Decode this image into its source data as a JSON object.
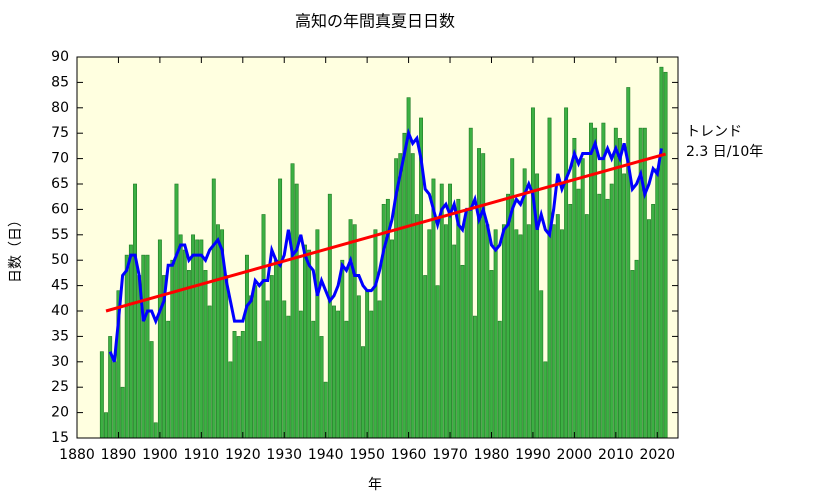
{
  "chart_data": {
    "type": "bar",
    "title": "高知の年間真夏日日数",
    "xlabel": "年",
    "ylabel": "日数（日）",
    "annotations": [
      "トレンド",
      "2.3 日/10年"
    ],
    "x": [
      1886,
      1887,
      1888,
      1889,
      1890,
      1891,
      1892,
      1893,
      1894,
      1895,
      1896,
      1897,
      1898,
      1899,
      1900,
      1901,
      1902,
      1903,
      1904,
      1905,
      1906,
      1907,
      1908,
      1909,
      1910,
      1911,
      1912,
      1913,
      1914,
      1915,
      1916,
      1917,
      1918,
      1919,
      1920,
      1921,
      1922,
      1923,
      1924,
      1925,
      1926,
      1927,
      1928,
      1929,
      1930,
      1931,
      1932,
      1933,
      1934,
      1935,
      1936,
      1937,
      1938,
      1939,
      1940,
      1941,
      1942,
      1943,
      1944,
      1945,
      1946,
      1947,
      1948,
      1949,
      1950,
      1951,
      1952,
      1953,
      1954,
      1955,
      1956,
      1957,
      1958,
      1959,
      1960,
      1961,
      1962,
      1963,
      1964,
      1965,
      1966,
      1967,
      1968,
      1969,
      1970,
      1971,
      1972,
      1973,
      1974,
      1975,
      1976,
      1977,
      1978,
      1979,
      1980,
      1981,
      1982,
      1983,
      1984,
      1985,
      1986,
      1987,
      1988,
      1989,
      1990,
      1991,
      1992,
      1993,
      1994,
      1995,
      1996,
      1997,
      1998,
      1999,
      2000,
      2001,
      2002,
      2003,
      2004,
      2005,
      2006,
      2007,
      2008,
      2009,
      2010,
      2011,
      2012,
      2013,
      2014,
      2015,
      2016,
      2017,
      2018,
      2019,
      2020,
      2021,
      2022
    ],
    "series": [
      {
        "color": "#3cb043",
        "values": [
          32,
          20,
          35,
          30,
          44,
          25,
          51,
          53,
          65,
          47,
          51,
          51,
          34,
          18,
          54,
          47,
          38,
          50,
          65,
          55,
          52,
          48,
          55,
          54,
          54,
          48,
          41,
          66,
          57,
          56,
          47,
          30,
          36,
          35,
          36,
          51,
          43,
          45,
          34,
          59,
          42,
          47,
          50,
          66,
          42,
          39,
          69,
          65,
          40,
          53,
          52,
          38,
          56,
          35,
          26,
          63,
          41,
          40,
          50,
          38,
          58,
          57,
          43,
          33,
          44,
          40,
          56,
          42,
          61,
          62,
          54,
          70,
          71,
          75,
          82,
          71,
          59,
          78,
          47,
          56,
          66,
          45,
          65,
          57,
          65,
          53,
          62,
          49,
          60,
          76,
          39,
          72,
          71,
          57,
          48,
          56,
          38,
          57,
          63,
          70,
          56,
          55,
          68,
          57,
          80,
          67,
          44,
          30,
          78,
          57,
          59,
          56,
          80,
          61,
          74,
          64,
          70,
          59,
          77,
          76,
          63,
          77,
          62,
          65,
          76,
          74,
          67,
          84,
          48,
          50,
          76,
          76,
          58,
          61,
          68,
          88,
          87
        ]
      },
      {
        "color": "#0000ff",
        "line": true,
        "values": [
          null,
          null,
          32,
          30,
          38,
          47,
          48,
          51,
          51,
          47,
          38,
          40,
          40,
          38,
          40,
          42,
          49,
          49,
          51,
          53,
          53,
          50,
          51,
          51,
          51,
          50,
          52,
          53,
          54,
          52,
          46,
          42,
          38,
          38,
          38,
          41,
          42,
          46,
          45,
          46,
          46,
          52,
          50,
          49,
          51,
          56,
          51,
          52,
          55,
          51,
          49,
          48,
          43,
          46,
          44,
          42,
          43,
          45,
          49,
          48,
          50,
          47,
          47,
          45,
          44,
          44,
          45,
          48,
          52,
          55,
          58,
          63,
          67,
          71,
          75,
          73,
          74,
          70,
          64,
          63,
          60,
          57,
          60,
          61,
          59,
          61,
          57,
          56,
          60,
          60,
          62,
          58,
          60,
          57,
          53,
          52,
          53,
          56,
          57,
          60,
          62,
          61,
          63,
          65,
          63,
          56,
          59,
          56,
          55,
          60,
          67,
          64,
          66,
          68,
          71,
          69,
          71,
          71,
          71,
          73,
          70,
          70,
          72,
          70,
          72,
          70,
          73,
          69,
          64,
          65,
          67,
          63,
          65,
          68,
          67,
          72,
          null
        ]
      }
    ],
    "trend": {
      "color": "#ff0000",
      "x": [
        1887,
        2022
      ],
      "values": [
        40,
        70.9
      ]
    },
    "xlim": [
      1880,
      2025
    ],
    "xticks": [
      1880,
      1890,
      1900,
      1910,
      1920,
      1930,
      1940,
      1950,
      1960,
      1970,
      1980,
      1990,
      2000,
      2010,
      2020
    ],
    "ylim": [
      15,
      90
    ],
    "yticks": [
      15,
      20,
      25,
      30,
      35,
      40,
      45,
      50,
      55,
      60,
      65,
      70,
      75,
      80,
      85,
      90
    ]
  }
}
